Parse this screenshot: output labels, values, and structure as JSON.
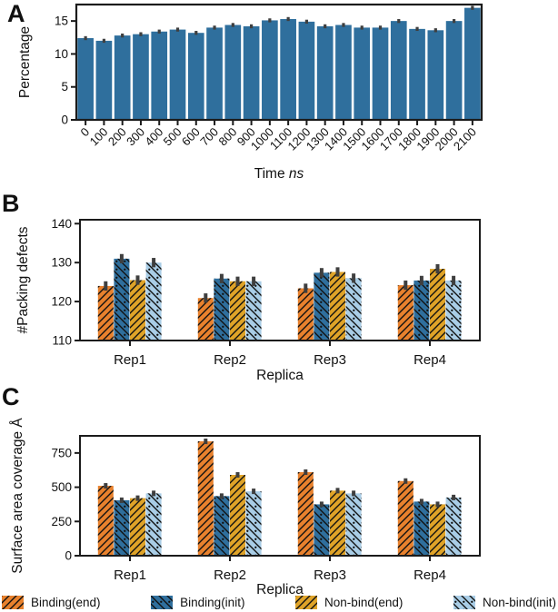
{
  "figure": {
    "panel_letters": {
      "a": "A",
      "b": "B",
      "c": "C"
    }
  },
  "legend": {
    "items": [
      {
        "label": "Binding(end)",
        "color": "#e8812d",
        "hatch": "fwd"
      },
      {
        "label": "Binding(init)",
        "color": "#2f6f9d",
        "hatch": "bwd-dot"
      },
      {
        "label": "Non-bind(end)",
        "color": "#dfa328",
        "hatch": "fwd"
      },
      {
        "label": "Non-bind(init)",
        "color": "#a9cde6",
        "hatch": "bwd-dot"
      }
    ]
  },
  "colors": {
    "bar_blue": "#2f6f9d",
    "orange": "#e8812d",
    "gold": "#dfa328",
    "light_blue": "#a9cde6",
    "error_bar": "#3f3f3f",
    "axis": "#1b1b1b"
  },
  "chart_data": [
    {
      "id": "A",
      "type": "bar",
      "title": "",
      "xlabel_parts": [
        {
          "text": "Time ",
          "italic": false
        },
        {
          "text": "ns",
          "italic": true
        }
      ],
      "ylabel": "Percentage",
      "categories": [
        "0",
        "100",
        "200",
        "300",
        "400",
        "500",
        "600",
        "700",
        "800",
        "900",
        "1000",
        "1100",
        "1200",
        "1300",
        "1400",
        "1500",
        "1600",
        "1700",
        "1800",
        "1900",
        "2000",
        "2100"
      ],
      "values": [
        12.4,
        12.0,
        12.8,
        13.0,
        13.4,
        13.7,
        13.2,
        14.0,
        14.4,
        14.2,
        15.1,
        15.3,
        14.9,
        14.2,
        14.4,
        14.0,
        14.0,
        15.0,
        13.8,
        13.6,
        15.0,
        17.0
      ],
      "error": 0.3,
      "bar_color": "#2f6f9d",
      "yticks": [
        0,
        5,
        10,
        15
      ],
      "ylim": [
        0,
        17.5
      ],
      "grid": false,
      "xtick_rotation": 45
    },
    {
      "id": "B",
      "type": "grouped-bar",
      "title": "",
      "xlabel": "Replica",
      "ylabel": "#Packing defects",
      "categories": [
        "Rep1",
        "Rep2",
        "Rep3",
        "Rep4"
      ],
      "series": [
        {
          "name": "Binding(end)",
          "color": "#e8812d",
          "hatch": "fwd",
          "values": [
            124.0,
            120.9,
            123.4,
            124.2
          ],
          "error": 1.2
        },
        {
          "name": "Binding(init)",
          "color": "#2f6f9d",
          "hatch": "bwd-dot",
          "values": [
            131.0,
            125.9,
            127.4,
            125.4
          ],
          "error": 1.2
        },
        {
          "name": "Non-bind(end)",
          "color": "#dfa328",
          "hatch": "fwd",
          "values": [
            125.5,
            125.2,
            127.6,
            128.4
          ],
          "error": 1.2
        },
        {
          "name": "Non-bind(init)",
          "color": "#a9cde6",
          "hatch": "bwd-dot",
          "values": [
            130.0,
            125.2,
            126.0,
            125.4
          ],
          "error": 1.2
        }
      ],
      "yticks": [
        110,
        120,
        130,
        140
      ],
      "ylim": [
        110,
        141
      ],
      "grid": false,
      "legend_position": "bottom"
    },
    {
      "id": "C",
      "type": "grouped-bar",
      "title": "",
      "xlabel": "Replica",
      "ylabel": "Surface area coverage Å",
      "categories": [
        "Rep1",
        "Rep2",
        "Rep3",
        "Rep4"
      ],
      "series": [
        {
          "name": "Binding(end)",
          "color": "#e8812d",
          "hatch": "fwd",
          "values": [
            510,
            835,
            610,
            545
          ],
          "error": 20
        },
        {
          "name": "Binding(init)",
          "color": "#2f6f9d",
          "hatch": "bwd-dot",
          "values": [
            405,
            435,
            375,
            395
          ],
          "error": 20
        },
        {
          "name": "Non-bind(end)",
          "color": "#dfa328",
          "hatch": "fwd",
          "values": [
            420,
            590,
            475,
            375
          ],
          "error": 20
        },
        {
          "name": "Non-bind(init)",
          "color": "#a9cde6",
          "hatch": "bwd-dot",
          "values": [
            455,
            470,
            455,
            425
          ],
          "error": 20
        }
      ],
      "yticks": [
        0,
        250,
        500,
        750
      ],
      "ylim": [
        0,
        875
      ],
      "grid": false,
      "legend_position": "bottom"
    }
  ]
}
